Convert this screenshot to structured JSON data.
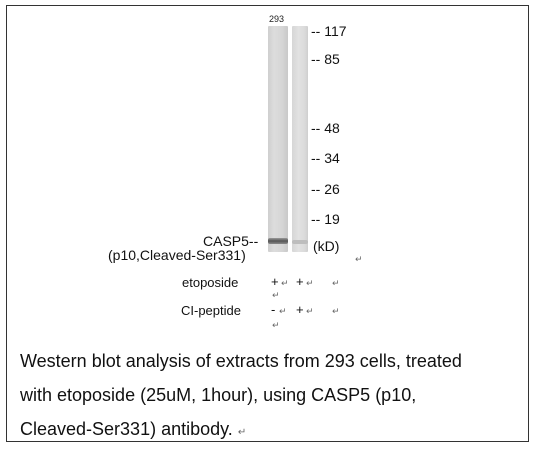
{
  "lane_header": "293",
  "markers": [
    {
      "label": "-- 117"
    },
    {
      "label": "-- 85"
    },
    {
      "label": "-- 48"
    },
    {
      "label": "-- 34"
    },
    {
      "label": "-- 26"
    },
    {
      "label": "-- 19"
    }
  ],
  "unit_label": "(kD)",
  "protein_label": {
    "line1": "CASP5--",
    "line2": "(p10,Cleaved-Ser331)"
  },
  "treatments": [
    {
      "label": "etoposide",
      "lane1": "+",
      "lane2": "+"
    },
    {
      "label": "CI-peptide",
      "lane1": "-",
      "lane2": "+"
    }
  ],
  "paragraph_mark": "↵",
  "caption": {
    "line1": "Western blot analysis of extracts from 293 cells, treated",
    "line2": "with etoposide (25uM, 1hour), using CASP5 (p10,",
    "line3": "Cleaved-Ser331) antibody."
  }
}
